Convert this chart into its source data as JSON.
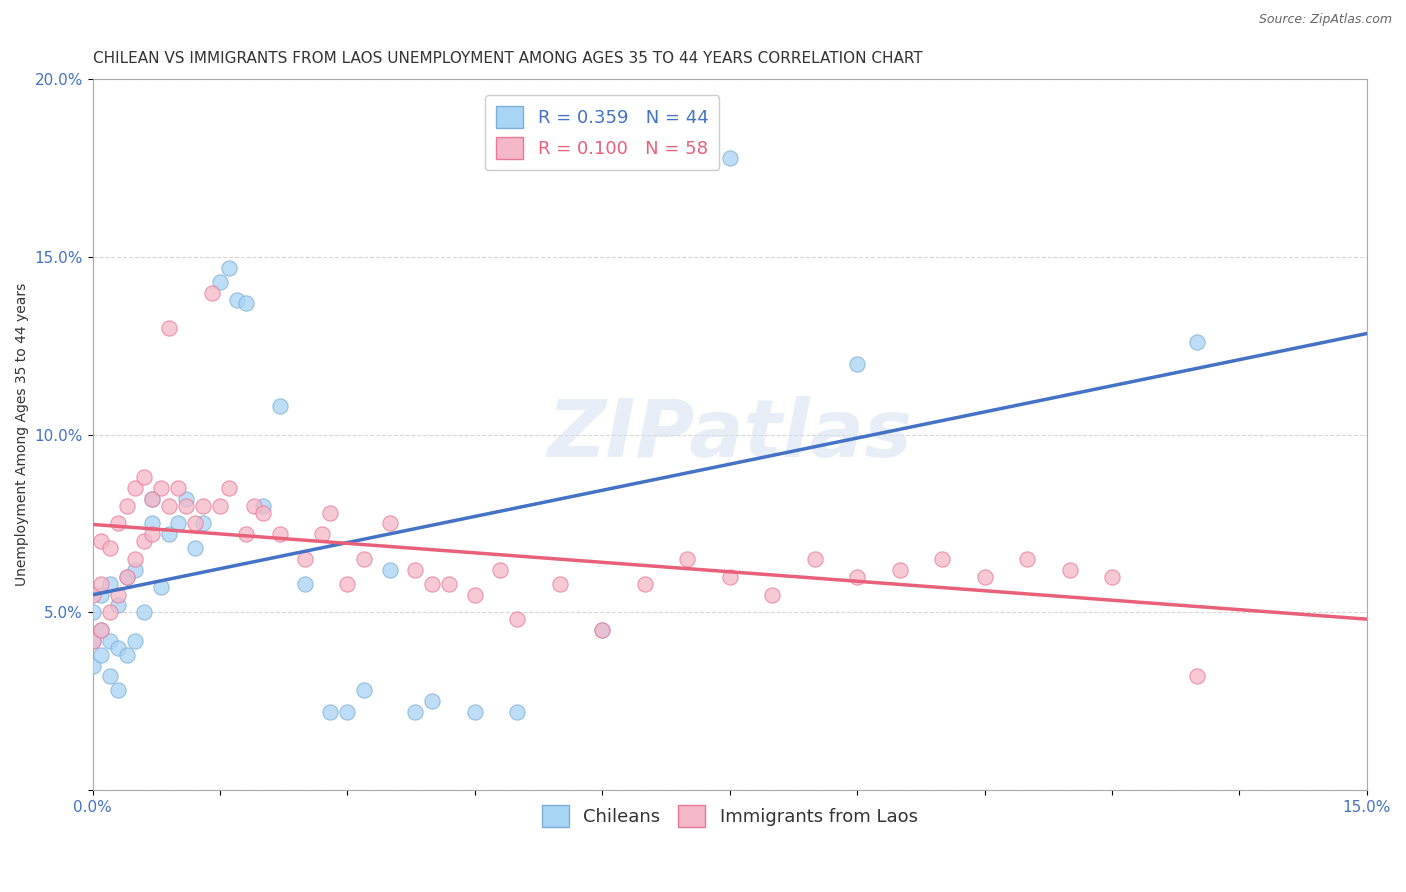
{
  "title": "CHILEAN VS IMMIGRANTS FROM LAOS UNEMPLOYMENT AMONG AGES 35 TO 44 YEARS CORRELATION CHART",
  "source": "Source: ZipAtlas.com",
  "ylabel": "Unemployment Among Ages 35 to 44 years",
  "xlim": [
    0.0,
    0.15
  ],
  "ylim": [
    0.0,
    0.2
  ],
  "xticks": [
    0.0,
    0.015,
    0.03,
    0.045,
    0.06,
    0.075,
    0.09,
    0.105,
    0.12,
    0.135,
    0.15
  ],
  "xticklabels": [
    "0.0%",
    "",
    "",
    "",
    "",
    "",
    "",
    "",
    "",
    "",
    "15.0%"
  ],
  "yticks": [
    0.0,
    0.05,
    0.1,
    0.15,
    0.2
  ],
  "yticklabels": [
    "",
    "5.0%",
    "10.0%",
    "15.0%",
    "20.0%"
  ],
  "background_color": "#ffffff",
  "grid_color": "#cccccc",
  "chilean_color": "#a8d4f5",
  "laos_color": "#f5b8c8",
  "chilean_edge_color": "#7bafd4",
  "laos_edge_color": "#e8789a",
  "chilean_line_color": "#4472C4",
  "laos_line_color": "#E8607A",
  "r_chilean": 0.359,
  "n_chilean": 44,
  "r_laos": 0.1,
  "n_laos": 58,
  "watermark": "ZIPatlas",
  "chilean_scatter_x": [
    0.0,
    0.0,
    0.0,
    0.001,
    0.001,
    0.001,
    0.002,
    0.002,
    0.002,
    0.003,
    0.003,
    0.003,
    0.004,
    0.004,
    0.005,
    0.005,
    0.006,
    0.007,
    0.007,
    0.008,
    0.009,
    0.01,
    0.011,
    0.012,
    0.013,
    0.015,
    0.016,
    0.017,
    0.018,
    0.02,
    0.022,
    0.025,
    0.028,
    0.03,
    0.032,
    0.035,
    0.038,
    0.04,
    0.045,
    0.05,
    0.06,
    0.075,
    0.09,
    0.13
  ],
  "chilean_scatter_y": [
    0.035,
    0.042,
    0.05,
    0.038,
    0.045,
    0.055,
    0.032,
    0.042,
    0.058,
    0.028,
    0.04,
    0.052,
    0.038,
    0.06,
    0.042,
    0.062,
    0.05,
    0.075,
    0.082,
    0.057,
    0.072,
    0.075,
    0.082,
    0.068,
    0.075,
    0.143,
    0.147,
    0.138,
    0.137,
    0.08,
    0.108,
    0.058,
    0.022,
    0.022,
    0.028,
    0.062,
    0.022,
    0.025,
    0.022,
    0.022,
    0.045,
    0.178,
    0.12,
    0.126
  ],
  "laos_scatter_x": [
    0.0,
    0.0,
    0.001,
    0.001,
    0.001,
    0.002,
    0.002,
    0.003,
    0.003,
    0.004,
    0.004,
    0.005,
    0.005,
    0.006,
    0.006,
    0.007,
    0.007,
    0.008,
    0.009,
    0.009,
    0.01,
    0.011,
    0.012,
    0.013,
    0.014,
    0.015,
    0.016,
    0.018,
    0.019,
    0.02,
    0.022,
    0.025,
    0.027,
    0.028,
    0.03,
    0.032,
    0.035,
    0.038,
    0.04,
    0.042,
    0.045,
    0.048,
    0.05,
    0.055,
    0.06,
    0.065,
    0.07,
    0.075,
    0.08,
    0.085,
    0.09,
    0.095,
    0.1,
    0.105,
    0.11,
    0.115,
    0.12,
    0.13
  ],
  "laos_scatter_y": [
    0.042,
    0.055,
    0.045,
    0.058,
    0.07,
    0.05,
    0.068,
    0.055,
    0.075,
    0.06,
    0.08,
    0.065,
    0.085,
    0.07,
    0.088,
    0.072,
    0.082,
    0.085,
    0.13,
    0.08,
    0.085,
    0.08,
    0.075,
    0.08,
    0.14,
    0.08,
    0.085,
    0.072,
    0.08,
    0.078,
    0.072,
    0.065,
    0.072,
    0.078,
    0.058,
    0.065,
    0.075,
    0.062,
    0.058,
    0.058,
    0.055,
    0.062,
    0.048,
    0.058,
    0.045,
    0.058,
    0.065,
    0.06,
    0.055,
    0.065,
    0.06,
    0.062,
    0.065,
    0.06,
    0.065,
    0.062,
    0.06,
    0.032
  ],
  "title_fontsize": 11,
  "label_fontsize": 10,
  "tick_fontsize": 11,
  "legend_fontsize": 13
}
